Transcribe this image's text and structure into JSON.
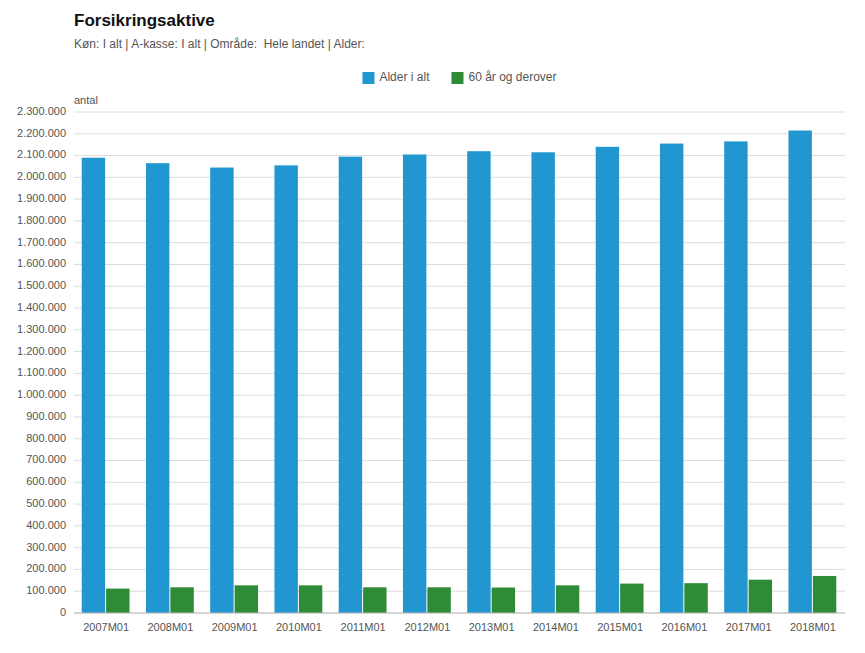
{
  "chart_data": {
    "type": "bar",
    "title": "Forsikringsaktive",
    "subtitle": "Køn: I alt | A-kasse: I alt | Område:  Hele landet | Alder:",
    "ylabel": "antal",
    "categories": [
      "2007M01",
      "2008M01",
      "2009M01",
      "2010M01",
      "2011M01",
      "2012M01",
      "2013M01",
      "2014M01",
      "2015M01",
      "2016M01",
      "2017M01",
      "2018M01"
    ],
    "series": [
      {
        "name": "Alder i alt",
        "color": "#2196d0",
        "values": [
          2090000,
          2065000,
          2045000,
          2055000,
          2095000,
          2105000,
          2120000,
          2115000,
          2140000,
          2155000,
          2165000,
          2215000
        ]
      },
      {
        "name": "60 år og derover",
        "color": "#2e8b37",
        "values": [
          112000,
          118000,
          127000,
          127000,
          118000,
          118000,
          117000,
          127000,
          135000,
          137000,
          153000,
          170000
        ]
      }
    ],
    "ylim": [
      0,
      2300000
    ],
    "yticks": [
      0,
      {
        "value": 100000,
        "label": "100.000"
      },
      {
        "value": 200000,
        "label": "200.000"
      },
      {
        "value": 300000,
        "label": "300.000"
      },
      {
        "value": 400000,
        "label": "400.000"
      },
      {
        "value": 500000,
        "label": "500.000"
      },
      {
        "value": 600000,
        "label": "600.000"
      },
      {
        "value": 700000,
        "label": "700.000"
      },
      {
        "value": 800000,
        "label": "800.000"
      },
      {
        "value": 900000,
        "label": "900.000"
      },
      {
        "value": 1000000,
        "label": "1.000.000"
      },
      {
        "value": 1100000,
        "label": "1.100.000"
      },
      {
        "value": 1200000,
        "label": "1.200.000"
      },
      {
        "value": 1300000,
        "label": "1.300.000"
      },
      {
        "value": 1400000,
        "label": "1.400.000"
      },
      {
        "value": 1500000,
        "label": "1.500.000"
      },
      {
        "value": 1600000,
        "label": "1.600.000"
      },
      {
        "value": 1700000,
        "label": "1.700.000"
      },
      {
        "value": 1800000,
        "label": "1.800.000"
      },
      {
        "value": 1900000,
        "label": "1.900.000"
      },
      {
        "value": 2000000,
        "label": "2.000.000"
      },
      {
        "value": 2100000,
        "label": "2.100.000"
      },
      {
        "value": 2200000,
        "label": "2.200.000"
      },
      {
        "value": 2300000,
        "label": "2.300.000"
      }
    ],
    "grid": true,
    "legend": "top"
  }
}
